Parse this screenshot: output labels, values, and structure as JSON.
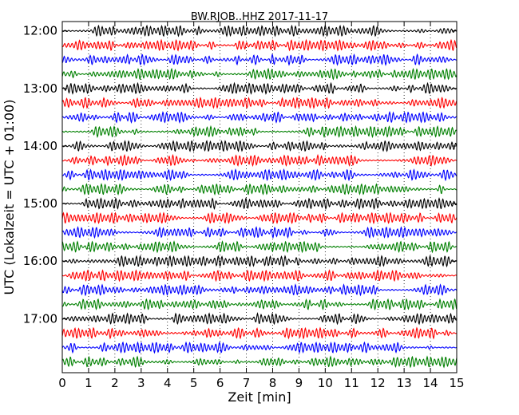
{
  "chart_data": {
    "type": "line",
    "title": "BW.RJOB..HHZ 2017-11-17",
    "xlabel": "Zeit  [min]",
    "ylabel": "UTC (Lokalzeit = UTC + 01:00)",
    "xlim": [
      0,
      15
    ],
    "x_ticks": [
      "0",
      "1",
      "2",
      "3",
      "4",
      "5",
      "6",
      "7",
      "8",
      "9",
      "10",
      "11",
      "12",
      "13",
      "14",
      "15"
    ],
    "y_tick_labels": [
      "12:00",
      "13:00",
      "14:00",
      "15:00",
      "16:00",
      "17:00"
    ],
    "grid": "vertical dotted",
    "trace_colors": [
      "#000000",
      "#ff0000",
      "#0000ff",
      "#008000"
    ],
    "traces": [
      {
        "start": "12:00",
        "color": "#000000"
      },
      {
        "start": "12:15",
        "color": "#ff0000"
      },
      {
        "start": "12:30",
        "color": "#0000ff"
      },
      {
        "start": "12:45",
        "color": "#008000"
      },
      {
        "start": "13:00",
        "color": "#000000"
      },
      {
        "start": "13:15",
        "color": "#ff0000"
      },
      {
        "start": "13:30",
        "color": "#0000ff"
      },
      {
        "start": "13:45",
        "color": "#008000"
      },
      {
        "start": "14:00",
        "color": "#000000"
      },
      {
        "start": "14:15",
        "color": "#ff0000"
      },
      {
        "start": "14:30",
        "color": "#0000ff"
      },
      {
        "start": "14:45",
        "color": "#008000"
      },
      {
        "start": "15:00",
        "color": "#000000"
      },
      {
        "start": "15:15",
        "color": "#ff0000"
      },
      {
        "start": "15:30",
        "color": "#0000ff"
      },
      {
        "start": "15:45",
        "color": "#008000"
      },
      {
        "start": "16:00",
        "color": "#000000"
      },
      {
        "start": "16:15",
        "color": "#ff0000"
      },
      {
        "start": "16:30",
        "color": "#0000ff"
      },
      {
        "start": "16:45",
        "color": "#008000"
      },
      {
        "start": "17:00",
        "color": "#000000"
      },
      {
        "start": "17:15",
        "color": "#ff0000"
      },
      {
        "start": "17:30",
        "color": "#0000ff"
      },
      {
        "start": "17:45",
        "color": "#008000"
      }
    ]
  }
}
